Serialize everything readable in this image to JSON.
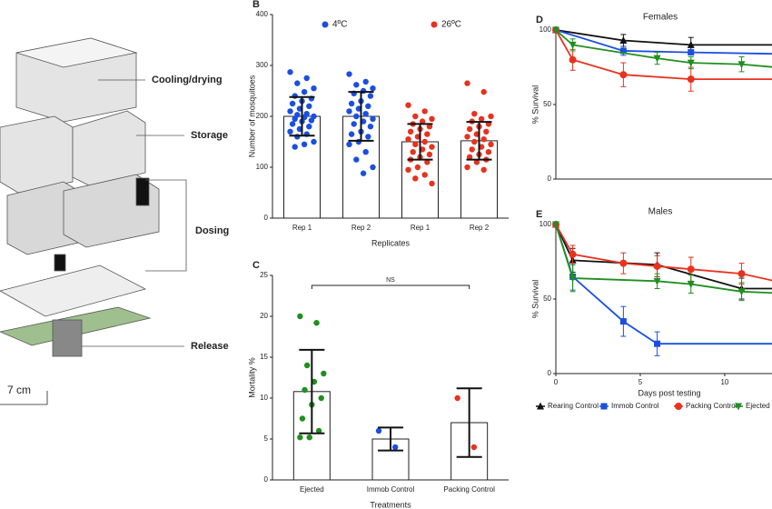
{
  "illustration": {
    "labels": [
      "Cooling/drying",
      "Storage",
      "Dosing",
      "Release"
    ],
    "scale": "7 cm"
  },
  "chart_data": [
    {
      "type": "bar",
      "label": "B",
      "ylabel": "Number of mosquitoes",
      "xlabel": "Replicates",
      "categories": [
        "Rep 1",
        "Rep 2",
        "Rep 1",
        "Rep 2"
      ],
      "ylim": [
        0,
        400
      ],
      "yticks": [
        0,
        100,
        200,
        300,
        400
      ],
      "series": [
        {
          "name": "4ºC",
          "color": "#1a4fe0",
          "values": [
            200,
            200,
            null,
            null
          ],
          "errors": [
            38,
            48,
            null,
            null
          ],
          "points": [
            [
              287,
              275,
              265,
              255,
              248,
              240,
              235,
              230,
              225,
              220,
              215,
              210,
              205,
              203,
              200,
              198,
              195,
              192,
              190,
              185,
              180,
              175,
              170,
              165,
              160,
              150,
              145,
              140
            ],
            [
              283,
              268,
              262,
              255,
              250,
              245,
              240,
              230,
              225,
              220,
              215,
              210,
              205,
              200,
              195,
              190,
              185,
              180,
              170,
              165,
              160,
              150,
              145,
              130,
              115,
              100,
              88
            ],
            null,
            null
          ]
        },
        {
          "name": "26ºC",
          "color": "#e8321e",
          "values": [
            null,
            null,
            150,
            152
          ],
          "errors": [
            null,
            null,
            35,
            37
          ],
          "points": [
            null,
            null,
            [
              222,
              210,
              200,
              195,
              190,
              185,
              180,
              175,
              170,
              165,
              160,
              155,
              150,
              145,
              140,
              135,
              130,
              125,
              120,
              115,
              110,
              100,
              95,
              85,
              78,
              68
            ],
            [
              265,
              248,
              205,
              200,
              195,
              190,
              185,
              180,
              175,
              170,
              165,
              160,
              155,
              150,
              145,
              140,
              135,
              130,
              125,
              120,
              115,
              110,
              100,
              95
            ]
          ]
        }
      ]
    },
    {
      "type": "bar",
      "label": "C",
      "ylabel": "Mortality %",
      "xlabel": "Treatments",
      "annotation": "NS",
      "categories": [
        "Ejected",
        "Immob Control",
        "Packing Control"
      ],
      "ylim": [
        0,
        25
      ],
      "yticks": [
        0,
        5,
        10,
        15,
        20,
        25
      ],
      "series": [
        {
          "color": "#1f8f1f",
          "values": [
            10.8,
            null,
            null
          ],
          "errors": [
            5.1,
            null,
            null
          ],
          "points": [
            [
              20,
              19.2,
              14,
              13,
              12,
              11,
              10,
              9.2,
              7.5,
              6,
              5.2,
              5.2
            ],
            null,
            null
          ]
        },
        {
          "color": "#1a4fe0",
          "values": [
            null,
            5,
            null
          ],
          "errors": [
            null,
            1.4,
            null
          ],
          "points": [
            null,
            [
              6,
              4
            ],
            null
          ]
        },
        {
          "color": "#e8321e",
          "values": [
            null,
            null,
            7
          ],
          "errors": [
            null,
            null,
            4.2
          ],
          "points": [
            null,
            null,
            [
              10,
              4
            ]
          ]
        }
      ]
    },
    {
      "type": "line",
      "label": "D",
      "title": "Females",
      "ylabel": "% Survival",
      "xlim": [
        0,
        12.8
      ],
      "ylim": [
        0,
        100
      ],
      "yticks": [
        0,
        50,
        100
      ],
      "series": [
        {
          "color": "#111111",
          "marker": "triangle-up",
          "x": [
            0,
            4,
            8,
            13
          ],
          "values": [
            100,
            93,
            90,
            90
          ],
          "errors": [
            null,
            4,
            5,
            null
          ]
        },
        {
          "color": "#1a4fe0",
          "marker": "square",
          "x": [
            0,
            4,
            8,
            13
          ],
          "values": [
            100,
            86,
            85,
            84
          ],
          "errors": [
            null,
            3,
            null,
            null
          ]
        },
        {
          "color": "#e8321e",
          "marker": "circle",
          "x": [
            0,
            1,
            4,
            8,
            13
          ],
          "values": [
            100,
            80,
            70,
            67,
            67
          ],
          "errors": [
            null,
            7,
            8,
            8,
            null
          ]
        },
        {
          "color": "#1f8f1f",
          "marker": "triangle-down",
          "x": [
            0,
            1,
            6,
            8,
            11,
            13
          ],
          "values": [
            100,
            90,
            81,
            78,
            77,
            75
          ],
          "errors": [
            null,
            4,
            4,
            4,
            5,
            null
          ]
        }
      ]
    },
    {
      "type": "line",
      "label": "E",
      "title": "Males",
      "ylabel": "% Survival",
      "xlabel": "Days post testing",
      "xlim": [
        0,
        12.8
      ],
      "xticks": [
        0,
        5,
        10
      ],
      "ylim": [
        0,
        100
      ],
      "yticks": [
        0,
        50,
        100
      ],
      "series": [
        {
          "name": "Rearing Control",
          "color": "#111111",
          "marker": "triangle-up",
          "x": [
            0,
            1,
            6,
            11,
            13
          ],
          "values": [
            100,
            76,
            73,
            57,
            57
          ],
          "errors": [
            null,
            8,
            8,
            7,
            null
          ]
        },
        {
          "name": "Immob Control",
          "color": "#1a4fe0",
          "marker": "square",
          "x": [
            0,
            1,
            4,
            6,
            13
          ],
          "values": [
            100,
            65,
            35,
            20,
            20
          ],
          "errors": [
            null,
            9,
            10,
            8,
            null
          ]
        },
        {
          "name": "Packing Control",
          "color": "#e8321e",
          "marker": "circle",
          "x": [
            0,
            1,
            4,
            6,
            8,
            11,
            13
          ],
          "values": [
            100,
            80,
            74,
            72,
            70,
            67,
            62
          ],
          "errors": [
            null,
            6,
            7,
            7,
            8,
            7,
            null
          ]
        },
        {
          "name": "Ejected",
          "color": "#1f8f1f",
          "marker": "triangle-down",
          "x": [
            0,
            1,
            6,
            8,
            11,
            13
          ],
          "values": [
            100,
            64,
            62,
            60,
            55,
            54
          ],
          "errors": [
            null,
            9,
            5,
            6,
            6,
            null
          ]
        }
      ]
    }
  ]
}
